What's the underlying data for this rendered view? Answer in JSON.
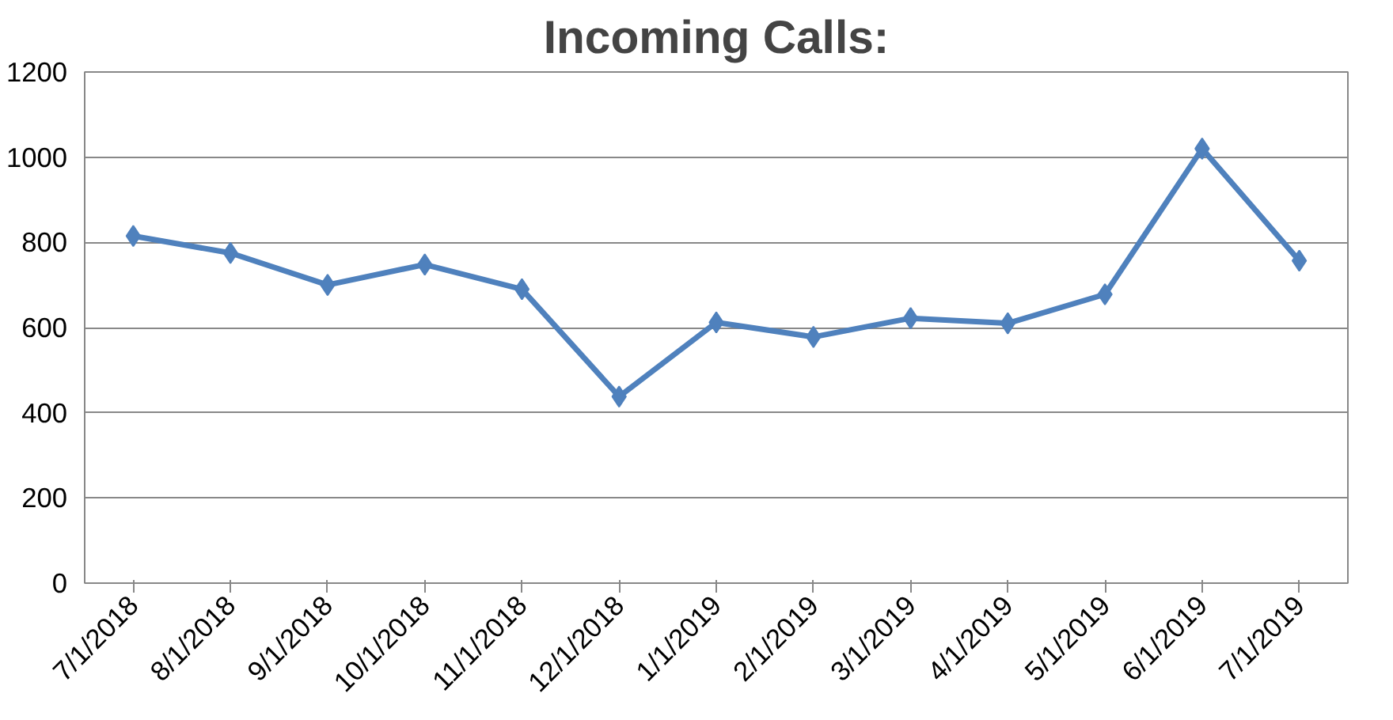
{
  "chart_data": {
    "type": "line",
    "title": "Incoming Calls:",
    "categories": [
      "7/1/2018",
      "8/1/2018",
      "9/1/2018",
      "10/1/2018",
      "11/1/2018",
      "12/1/2018",
      "1/1/2019",
      "2/1/2019",
      "3/1/2019",
      "4/1/2019",
      "5/1/2019",
      "6/1/2019",
      "7/1/2019"
    ],
    "series": [
      {
        "color": "#4f81bd",
        "values": [
          815,
          775,
          700,
          748,
          690,
          438,
          612,
          578,
          622,
          610,
          678,
          1020,
          757
        ]
      }
    ],
    "ylim": [
      0,
      1200
    ],
    "yticks": [
      0,
      200,
      400,
      600,
      800,
      1000,
      1200
    ],
    "grid": "y",
    "marker": "diamond",
    "line_style": "solid"
  }
}
